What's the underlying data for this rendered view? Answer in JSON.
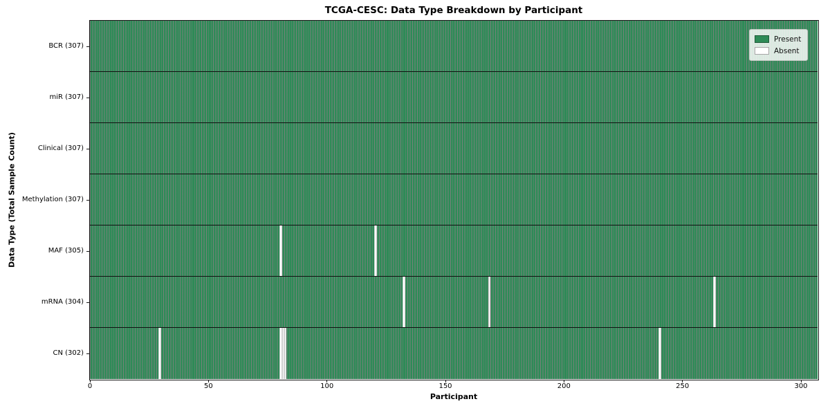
{
  "figure": {
    "background": "#ffffff"
  },
  "chart_data": {
    "type": "heatmap",
    "title": "TCGA-CESC: Data Type Breakdown by Participant",
    "xlabel": "Participant",
    "ylabel": "Data Type (Total Sample Count)",
    "x_ticks": [
      0,
      50,
      100,
      150,
      200,
      250,
      300
    ],
    "x_range": [
      0,
      307
    ],
    "n_participants": 307,
    "grid": false,
    "legend_position": "upper right",
    "legend": [
      {
        "label": "Present",
        "color": "#2e8b57"
      },
      {
        "label": "Absent",
        "color": "#ffffff"
      }
    ],
    "rows": [
      {
        "data_type": "BCR",
        "tick_label": "BCR (307)",
        "present_count": 307,
        "absent_participants": []
      },
      {
        "data_type": "miR",
        "tick_label": "miR (307)",
        "present_count": 307,
        "absent_participants": []
      },
      {
        "data_type": "Clinical",
        "tick_label": "Clinical (307)",
        "present_count": 307,
        "absent_participants": []
      },
      {
        "data_type": "Methylation",
        "tick_label": "Methylation (307)",
        "present_count": 307,
        "absent_participants": []
      },
      {
        "data_type": "MAF",
        "tick_label": "MAF (305)",
        "present_count": 305,
        "absent_participants": [
          80,
          120
        ]
      },
      {
        "data_type": "mRNA",
        "tick_label": "mRNA (304)",
        "present_count": 304,
        "absent_participants": [
          132,
          168,
          263
        ]
      },
      {
        "data_type": "CN",
        "tick_label": "CN (302)",
        "present_count": 302,
        "absent_participants": [
          29,
          80,
          81,
          82,
          240
        ]
      }
    ],
    "colors": {
      "present": "#2e8b57",
      "absent": "#ffffff",
      "bar_edge": "rgba(8,28,16,0.55)",
      "row_divider": "#101010",
      "axes_edge": "#151515"
    }
  }
}
